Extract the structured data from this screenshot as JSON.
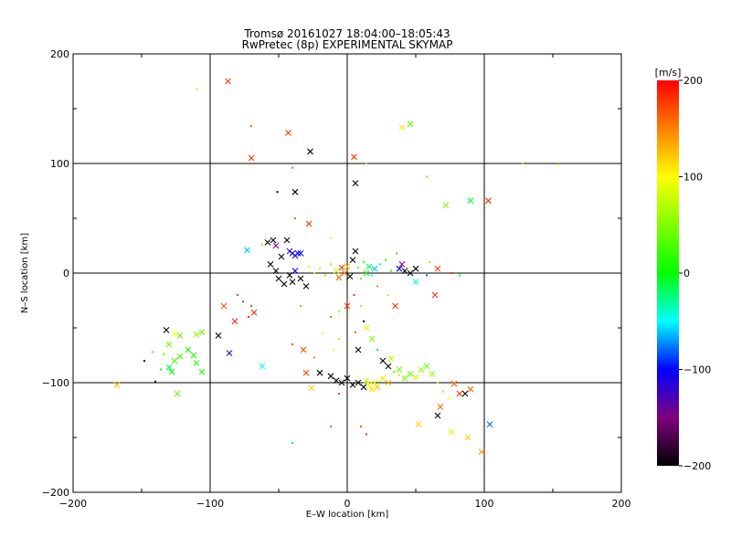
{
  "chart_data": {
    "type": "scatter",
    "title": "Tromsø 20161027 18:04:00–18:05:43",
    "subtitle": "RwPretec (8p) EXPERIMENTAL SKYMAP",
    "xlabel": "E–W location [km]",
    "ylabel": "N–S location [km]",
    "xlim": [
      -200,
      200
    ],
    "ylim": [
      -200,
      200
    ],
    "xticks": [
      "−200",
      "−100",
      "0",
      "100",
      "200"
    ],
    "yticks": [
      "200",
      "100",
      "0",
      "−100",
      "−200"
    ],
    "grid_lines": [
      -100,
      0,
      100
    ],
    "colorbar": {
      "unit": "[m/s]",
      "range": [
        -200,
        200
      ],
      "ticks": [
        "200",
        "100",
        "0",
        "−100",
        "−200"
      ]
    },
    "markers": {
      "cross": "x",
      "dot": "."
    },
    "points": [
      [
        -87,
        175,
        180,
        "x"
      ],
      [
        -110,
        168,
        110,
        "."
      ],
      [
        -43,
        128,
        180,
        "x"
      ],
      [
        -70,
        134,
        160,
        "."
      ],
      [
        -70,
        105,
        180,
        "x"
      ],
      [
        -27,
        111,
        -200,
        "x"
      ],
      [
        5,
        106,
        180,
        "x"
      ],
      [
        40,
        133,
        110,
        "x"
      ],
      [
        46,
        136,
        40,
        "x"
      ],
      [
        14,
        100,
        60,
        "."
      ],
      [
        128,
        100,
        130,
        "."
      ],
      [
        154,
        99,
        110,
        "."
      ],
      [
        6,
        82,
        -200,
        "x"
      ],
      [
        -38,
        74,
        -200,
        "x"
      ],
      [
        -51,
        74,
        -200,
        "."
      ],
      [
        -40,
        96,
        150,
        "."
      ],
      [
        103,
        66,
        180,
        "x"
      ],
      [
        90,
        66,
        -10,
        "x"
      ],
      [
        72,
        62,
        50,
        "x"
      ],
      [
        -28,
        45,
        180,
        "x"
      ],
      [
        58,
        88,
        40,
        "."
      ],
      [
        -38,
        50,
        160,
        "."
      ],
      [
        -12,
        32,
        90,
        "."
      ],
      [
        -73,
        21,
        -60,
        "x"
      ],
      [
        -58,
        28,
        -200,
        "x"
      ],
      [
        -54,
        30,
        -200,
        "x"
      ],
      [
        -52,
        25,
        -150,
        "x"
      ],
      [
        -62,
        26,
        60,
        "."
      ],
      [
        -44,
        30,
        -200,
        "x"
      ],
      [
        -42,
        20,
        -120,
        "x"
      ],
      [
        -40,
        18,
        -100,
        "x"
      ],
      [
        -38,
        16,
        -120,
        "x"
      ],
      [
        -36,
        18,
        -110,
        "x"
      ],
      [
        -34,
        18,
        -100,
        "x"
      ],
      [
        -48,
        15,
        -200,
        "x"
      ],
      [
        -56,
        8,
        -200,
        "x"
      ],
      [
        -52,
        2,
        -200,
        "x"
      ],
      [
        -50,
        -5,
        -200,
        "x"
      ],
      [
        -46,
        -10,
        -200,
        "x"
      ],
      [
        -42,
        -2,
        -200,
        "x"
      ],
      [
        -40,
        -8,
        -200,
        "x"
      ],
      [
        -38,
        2,
        -100,
        "x"
      ],
      [
        -34,
        -5,
        -200,
        "x"
      ],
      [
        -30,
        -12,
        -200,
        "x"
      ],
      [
        -28,
        6,
        80,
        "."
      ],
      [
        -24,
        0,
        80,
        "."
      ],
      [
        -20,
        4,
        60,
        "."
      ],
      [
        -16,
        -2,
        40,
        "."
      ],
      [
        -12,
        8,
        40,
        "."
      ],
      [
        -8,
        2,
        80,
        "x"
      ],
      [
        -6,
        -4,
        160,
        "x"
      ],
      [
        -4,
        5,
        180,
        "x"
      ],
      [
        -2,
        0,
        150,
        "x"
      ],
      [
        0,
        6,
        120,
        "x"
      ],
      [
        2,
        -3,
        -200,
        "x"
      ],
      [
        4,
        12,
        -200,
        "x"
      ],
      [
        6,
        20,
        -200,
        "x"
      ],
      [
        8,
        5,
        40,
        "."
      ],
      [
        10,
        -5,
        30,
        "."
      ],
      [
        12,
        10,
        20,
        "."
      ],
      [
        14,
        0,
        10,
        "x"
      ],
      [
        16,
        6,
        -20,
        "x"
      ],
      [
        18,
        -2,
        -40,
        "."
      ],
      [
        20,
        4,
        -60,
        "x"
      ],
      [
        24,
        8,
        -40,
        "."
      ],
      [
        28,
        12,
        20,
        "."
      ],
      [
        32,
        2,
        10,
        "."
      ],
      [
        36,
        18,
        20,
        "."
      ],
      [
        38,
        4,
        -100,
        "x"
      ],
      [
        40,
        8,
        -150,
        "x"
      ],
      [
        42,
        2,
        -200,
        "x"
      ],
      [
        46,
        0,
        -200,
        "x"
      ],
      [
        50,
        4,
        -200,
        "x"
      ],
      [
        60,
        10,
        50,
        "."
      ],
      [
        66,
        4,
        170,
        "x"
      ],
      [
        -90,
        -30,
        170,
        "x"
      ],
      [
        -80,
        -20,
        180,
        "."
      ],
      [
        -76,
        -26,
        180,
        "."
      ],
      [
        -70,
        -30,
        170,
        "."
      ],
      [
        -68,
        -36,
        180,
        "x"
      ],
      [
        -72,
        -40,
        180,
        "."
      ],
      [
        -82,
        -44,
        180,
        "x"
      ],
      [
        -94,
        -57,
        -200,
        "x"
      ],
      [
        -86,
        -73,
        -120,
        "x"
      ],
      [
        -62,
        -85,
        -50,
        "x"
      ],
      [
        -40,
        -65,
        170,
        "."
      ],
      [
        -32,
        -70,
        170,
        "x"
      ],
      [
        -24,
        -77,
        150,
        "."
      ],
      [
        -30,
        -91,
        170,
        "x"
      ],
      [
        -12,
        -40,
        160,
        "."
      ],
      [
        -6,
        -35,
        60,
        "."
      ],
      [
        0,
        -30,
        180,
        "x"
      ],
      [
        5,
        -20,
        180,
        "."
      ],
      [
        10,
        -30,
        120,
        "."
      ],
      [
        14,
        -50,
        110,
        "x"
      ],
      [
        18,
        -60,
        50,
        "x"
      ],
      [
        22,
        -70,
        10,
        "."
      ],
      [
        26,
        -80,
        -200,
        "x"
      ],
      [
        30,
        -85,
        -200,
        "x"
      ],
      [
        34,
        -90,
        40,
        "."
      ],
      [
        38,
        -93,
        70,
        "."
      ],
      [
        42,
        -96,
        50,
        "x"
      ],
      [
        46,
        -92,
        40,
        "x"
      ],
      [
        50,
        -95,
        80,
        "x"
      ],
      [
        54,
        -88,
        60,
        "x"
      ],
      [
        58,
        -85,
        40,
        "x"
      ],
      [
        62,
        -92,
        60,
        "x"
      ],
      [
        66,
        -100,
        80,
        "."
      ],
      [
        70,
        -108,
        60,
        "."
      ],
      [
        74,
        -114,
        100,
        "."
      ],
      [
        78,
        -101,
        160,
        "x"
      ],
      [
        82,
        -110,
        180,
        "x"
      ],
      [
        86,
        -110,
        -200,
        "x"
      ],
      [
        90,
        -106,
        160,
        "x"
      ],
      [
        -20,
        -91,
        -200,
        "x"
      ],
      [
        -12,
        -94,
        -200,
        "x"
      ],
      [
        -8,
        -98,
        -200,
        "x"
      ],
      [
        -4,
        -100,
        -200,
        "x"
      ],
      [
        0,
        -96,
        -200,
        "x"
      ],
      [
        4,
        -102,
        -200,
        "x"
      ],
      [
        8,
        -100,
        -200,
        "x"
      ],
      [
        12,
        -104,
        -200,
        "x"
      ],
      [
        14,
        -98,
        80,
        "x"
      ],
      [
        16,
        -102,
        100,
        "x"
      ],
      [
        18,
        -106,
        110,
        "x"
      ],
      [
        20,
        -100,
        90,
        "x"
      ],
      [
        22,
        -104,
        120,
        "x"
      ],
      [
        26,
        -96,
        110,
        "x"
      ],
      [
        30,
        -100,
        130,
        "x"
      ],
      [
        -26,
        -105,
        120,
        "x"
      ],
      [
        68,
        -122,
        160,
        "x"
      ],
      [
        66,
        -130,
        -200,
        "x"
      ],
      [
        52,
        -138,
        120,
        "x"
      ],
      [
        76,
        -145,
        110,
        "x"
      ],
      [
        88,
        -150,
        120,
        "x"
      ],
      [
        104,
        -138,
        -80,
        "x"
      ],
      [
        98,
        -163,
        140,
        "x"
      ],
      [
        -168,
        -102,
        130,
        "x"
      ],
      [
        -140,
        -99,
        -200,
        "."
      ],
      [
        -132,
        -52,
        -200,
        "x"
      ],
      [
        -130,
        -65,
        40,
        "x"
      ],
      [
        -126,
        -55,
        100,
        "x"
      ],
      [
        -122,
        -57,
        40,
        "x"
      ],
      [
        -116,
        -70,
        10,
        "x"
      ],
      [
        -112,
        -75,
        0,
        "x"
      ],
      [
        -110,
        -82,
        20,
        "x"
      ],
      [
        -106,
        -90,
        10,
        "x"
      ],
      [
        -122,
        -76,
        30,
        "x"
      ],
      [
        -126,
        -80,
        20,
        "x"
      ],
      [
        -130,
        -86,
        -20,
        "x"
      ],
      [
        -134,
        -74,
        40,
        "."
      ],
      [
        -136,
        -88,
        -10,
        "."
      ],
      [
        -128,
        -90,
        0,
        "x"
      ],
      [
        -124,
        -110,
        40,
        "x"
      ],
      [
        -110,
        -56,
        60,
        "x"
      ],
      [
        -106,
        -54,
        40,
        "x"
      ],
      [
        -148,
        -80,
        -200,
        "."
      ],
      [
        -142,
        -72,
        30,
        "."
      ],
      [
        -40,
        -155,
        -20,
        "."
      ],
      [
        -12,
        -140,
        160,
        "."
      ],
      [
        -6,
        -110,
        170,
        "."
      ],
      [
        10,
        -140,
        170,
        "."
      ],
      [
        14,
        -147,
        180,
        "."
      ],
      [
        38,
        -88,
        50,
        "x"
      ],
      [
        32,
        -78,
        70,
        "x"
      ],
      [
        8,
        -70,
        -200,
        "x"
      ],
      [
        6,
        -54,
        160,
        "."
      ],
      [
        12,
        -44,
        -200,
        "."
      ],
      [
        22,
        -12,
        150,
        "."
      ],
      [
        30,
        -20,
        70,
        "."
      ],
      [
        35,
        -30,
        180,
        "x"
      ],
      [
        50,
        -8,
        -40,
        "x"
      ],
      [
        58,
        -2,
        -80,
        "."
      ],
      [
        64,
        -20,
        180,
        "x"
      ],
      [
        76,
        0,
        180,
        "."
      ],
      [
        82,
        -2,
        -10,
        "."
      ],
      [
        -10,
        -70,
        100,
        "."
      ],
      [
        -18,
        -55,
        90,
        "."
      ],
      [
        -6,
        -60,
        60,
        "."
      ],
      [
        -34,
        -30,
        140,
        "."
      ]
    ]
  }
}
